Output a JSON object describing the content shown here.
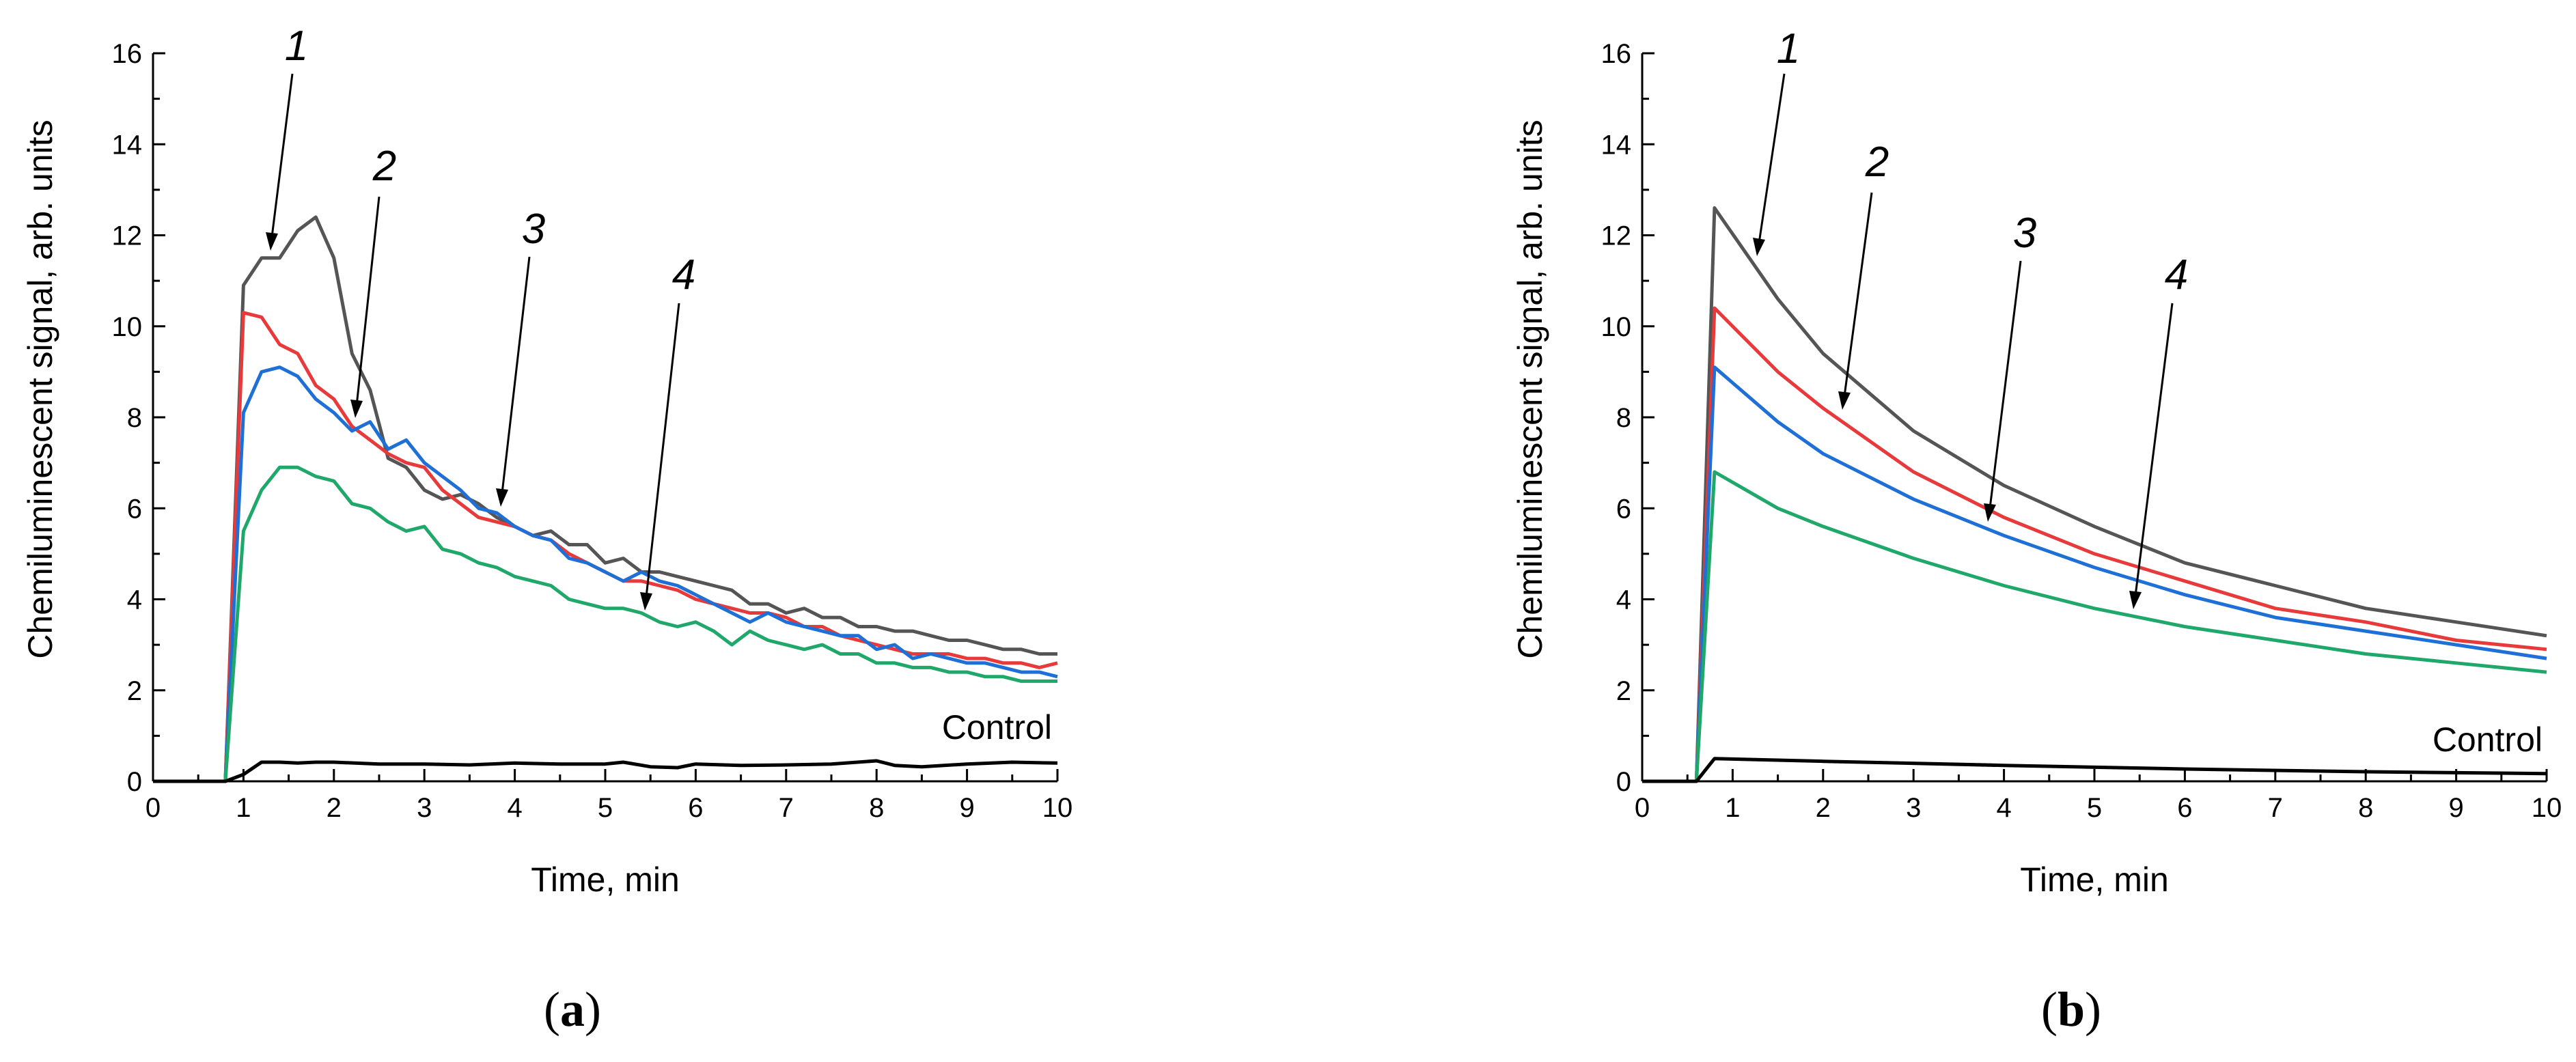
{
  "figure": {
    "captions": [
      "(a)",
      "(b)"
    ]
  },
  "chart_data": [
    {
      "type": "line",
      "panel": "(a)",
      "xlabel": "Time, min",
      "ylabel": "Chemiluminescent signal, arb. units",
      "xlim": [
        0,
        10
      ],
      "ylim": [
        0,
        16
      ],
      "xticks": [
        0,
        1,
        2,
        3,
        4,
        5,
        6,
        7,
        8,
        9,
        10
      ],
      "yticks": [
        0,
        2,
        4,
        6,
        8,
        10,
        12,
        14,
        16
      ],
      "series": [
        {
          "name": "1",
          "label": "1",
          "color": "#555555",
          "x": [
            0,
            0.8,
            1.0,
            1.2,
            1.4,
            1.6,
            1.8,
            2.0,
            2.2,
            2.4,
            2.6,
            2.8,
            3.0,
            3.2,
            3.4,
            3.6,
            3.8,
            4.0,
            4.2,
            4.4,
            4.6,
            4.8,
            5.0,
            5.2,
            5.4,
            5.6,
            5.8,
            6.0,
            6.2,
            6.4,
            6.6,
            6.8,
            7.0,
            7.2,
            7.4,
            7.6,
            7.8,
            8.0,
            8.2,
            8.4,
            8.6,
            8.8,
            9.0,
            9.2,
            9.4,
            9.6,
            9.8,
            10.0
          ],
          "y": [
            0,
            0,
            10.9,
            11.5,
            11.5,
            12.1,
            12.4,
            11.5,
            9.4,
            8.6,
            7.1,
            6.9,
            6.4,
            6.2,
            6.3,
            6.1,
            5.8,
            5.6,
            5.4,
            5.5,
            5.2,
            5.2,
            4.8,
            4.9,
            4.6,
            4.6,
            4.5,
            4.4,
            4.3,
            4.2,
            3.9,
            3.9,
            3.7,
            3.8,
            3.6,
            3.6,
            3.4,
            3.4,
            3.3,
            3.3,
            3.2,
            3.1,
            3.1,
            3.0,
            2.9,
            2.9,
            2.8,
            2.8
          ]
        },
        {
          "name": "2",
          "label": "2",
          "color": "#e83a3a",
          "x": [
            0,
            0.8,
            1.0,
            1.2,
            1.4,
            1.6,
            1.8,
            2.0,
            2.2,
            2.4,
            2.6,
            2.8,
            3.0,
            3.2,
            3.4,
            3.6,
            3.8,
            4.0,
            4.2,
            4.4,
            4.6,
            4.8,
            5.0,
            5.2,
            5.4,
            5.6,
            5.8,
            6.0,
            6.2,
            6.4,
            6.6,
            6.8,
            7.0,
            7.2,
            7.4,
            7.6,
            7.8,
            8.0,
            8.2,
            8.4,
            8.6,
            8.8,
            9.0,
            9.2,
            9.4,
            9.6,
            9.8,
            10.0
          ],
          "y": [
            0,
            0,
            10.3,
            10.2,
            9.6,
            9.4,
            8.7,
            8.4,
            7.8,
            7.5,
            7.2,
            7.0,
            6.9,
            6.4,
            6.1,
            5.8,
            5.7,
            5.6,
            5.4,
            5.3,
            5.0,
            4.8,
            4.6,
            4.4,
            4.4,
            4.3,
            4.2,
            4.0,
            3.9,
            3.8,
            3.7,
            3.7,
            3.6,
            3.4,
            3.4,
            3.2,
            3.1,
            3.0,
            2.9,
            2.8,
            2.8,
            2.8,
            2.7,
            2.7,
            2.6,
            2.6,
            2.5,
            2.6
          ]
        },
        {
          "name": "3",
          "label": "3",
          "color": "#1e6fd6",
          "x": [
            0,
            0.8,
            1.0,
            1.2,
            1.4,
            1.6,
            1.8,
            2.0,
            2.2,
            2.4,
            2.6,
            2.8,
            3.0,
            3.2,
            3.4,
            3.6,
            3.8,
            4.0,
            4.2,
            4.4,
            4.6,
            4.8,
            5.0,
            5.2,
            5.4,
            5.6,
            5.8,
            6.0,
            6.2,
            6.4,
            6.6,
            6.8,
            7.0,
            7.2,
            7.4,
            7.6,
            7.8,
            8.0,
            8.2,
            8.4,
            8.6,
            8.8,
            9.0,
            9.2,
            9.4,
            9.6,
            9.8,
            10.0
          ],
          "y": [
            0,
            0,
            8.1,
            9.0,
            9.1,
            8.9,
            8.4,
            8.1,
            7.7,
            7.9,
            7.3,
            7.5,
            7.0,
            6.7,
            6.4,
            6.0,
            5.9,
            5.6,
            5.4,
            5.3,
            4.9,
            4.8,
            4.6,
            4.4,
            4.6,
            4.4,
            4.3,
            4.1,
            3.9,
            3.7,
            3.5,
            3.7,
            3.5,
            3.4,
            3.3,
            3.2,
            3.2,
            2.9,
            3.0,
            2.7,
            2.8,
            2.7,
            2.6,
            2.6,
            2.5,
            2.4,
            2.4,
            2.3
          ]
        },
        {
          "name": "4",
          "label": "4",
          "color": "#1fa86a",
          "x": [
            0,
            0.8,
            1.0,
            1.2,
            1.4,
            1.6,
            1.8,
            2.0,
            2.2,
            2.4,
            2.6,
            2.8,
            3.0,
            3.2,
            3.4,
            3.6,
            3.8,
            4.0,
            4.2,
            4.4,
            4.6,
            4.8,
            5.0,
            5.2,
            5.4,
            5.6,
            5.8,
            6.0,
            6.2,
            6.4,
            6.6,
            6.8,
            7.0,
            7.2,
            7.4,
            7.6,
            7.8,
            8.0,
            8.2,
            8.4,
            8.6,
            8.8,
            9.0,
            9.2,
            9.4,
            9.6,
            9.8,
            10.0
          ],
          "y": [
            0,
            0,
            5.5,
            6.4,
            6.9,
            6.9,
            6.7,
            6.6,
            6.1,
            6.0,
            5.7,
            5.5,
            5.6,
            5.1,
            5.0,
            4.8,
            4.7,
            4.5,
            4.4,
            4.3,
            4.0,
            3.9,
            3.8,
            3.8,
            3.7,
            3.5,
            3.4,
            3.5,
            3.3,
            3.0,
            3.3,
            3.1,
            3.0,
            2.9,
            3.0,
            2.8,
            2.8,
            2.6,
            2.6,
            2.5,
            2.5,
            2.4,
            2.4,
            2.3,
            2.3,
            2.2,
            2.2,
            2.2
          ]
        },
        {
          "name": "Control",
          "label": "Control",
          "color": "#000000",
          "x": [
            0,
            0.8,
            1.0,
            1.2,
            1.4,
            1.6,
            1.8,
            2.0,
            2.5,
            3.0,
            3.5,
            4.0,
            4.5,
            5.0,
            5.2,
            5.5,
            5.8,
            6.0,
            6.5,
            7.0,
            7.5,
            8.0,
            8.2,
            8.5,
            9.0,
            9.5,
            10.0
          ],
          "y": [
            0,
            0,
            0.15,
            0.42,
            0.42,
            0.4,
            0.42,
            0.42,
            0.38,
            0.38,
            0.36,
            0.4,
            0.38,
            0.38,
            0.42,
            0.32,
            0.3,
            0.38,
            0.35,
            0.36,
            0.38,
            0.45,
            0.35,
            0.32,
            0.38,
            0.42,
            0.4
          ]
        }
      ]
    },
    {
      "type": "line",
      "panel": "(b)",
      "xlabel": "Time, min",
      "ylabel": "Chemiluminescent signal, arb. units",
      "xlim": [
        0,
        10
      ],
      "ylim": [
        0,
        16
      ],
      "xticks": [
        0,
        1,
        2,
        3,
        4,
        5,
        6,
        7,
        8,
        9,
        10
      ],
      "yticks": [
        0,
        2,
        4,
        6,
        8,
        10,
        12,
        14,
        16
      ],
      "series": [
        {
          "name": "1",
          "label": "1",
          "color": "#555555",
          "x": [
            0,
            0.6,
            0.8,
            1.5,
            2,
            3,
            4,
            5,
            6,
            7,
            8,
            9,
            10
          ],
          "y": [
            0,
            0,
            12.6,
            10.6,
            9.4,
            7.7,
            6.5,
            5.6,
            4.8,
            4.3,
            3.8,
            3.5,
            3.2
          ]
        },
        {
          "name": "2",
          "label": "2",
          "color": "#e83a3a",
          "x": [
            0,
            0.6,
            0.8,
            1.5,
            2,
            3,
            4,
            5,
            6,
            7,
            8,
            9,
            10
          ],
          "y": [
            0,
            0,
            10.4,
            9.0,
            8.2,
            6.8,
            5.8,
            5.0,
            4.4,
            3.8,
            3.5,
            3.1,
            2.9
          ]
        },
        {
          "name": "3",
          "label": "3",
          "color": "#1e6fd6",
          "x": [
            0,
            0.6,
            0.8,
            1.5,
            2,
            3,
            4,
            5,
            6,
            7,
            8,
            9,
            10
          ],
          "y": [
            0,
            0,
            9.1,
            7.9,
            7.2,
            6.2,
            5.4,
            4.7,
            4.1,
            3.6,
            3.3,
            3.0,
            2.7
          ]
        },
        {
          "name": "4",
          "label": "4",
          "color": "#1fa86a",
          "x": [
            0,
            0.6,
            0.8,
            1.5,
            2,
            3,
            4,
            5,
            6,
            7,
            8,
            9,
            10
          ],
          "y": [
            0,
            0,
            6.8,
            6.0,
            5.6,
            4.9,
            4.3,
            3.8,
            3.4,
            3.1,
            2.8,
            2.6,
            2.4
          ]
        },
        {
          "name": "Control",
          "label": "Control",
          "color": "#000000",
          "x": [
            0,
            0.6,
            0.8,
            2,
            4,
            6,
            8,
            10
          ],
          "y": [
            0,
            0,
            0.5,
            0.44,
            0.35,
            0.27,
            0.21,
            0.17
          ]
        }
      ]
    }
  ]
}
